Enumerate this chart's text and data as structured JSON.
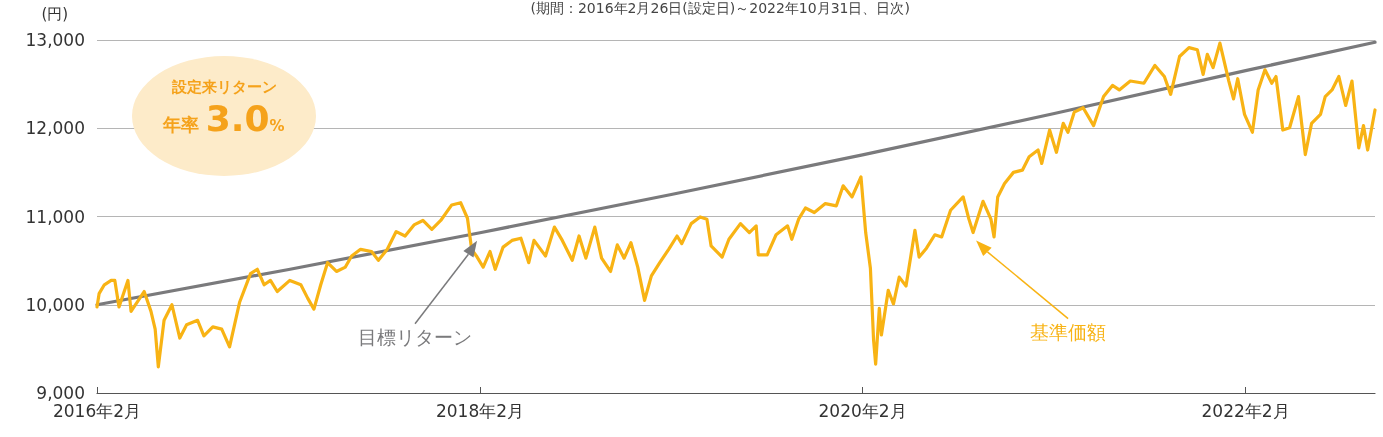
{
  "chart_data": {
    "type": "line",
    "subtitle": "(期間：2016年2月26日(設定日)～2022年10月31日、日次)",
    "ylabel": "(円)",
    "annotations": [
      "設定来リターン",
      "年率 3.0%"
    ],
    "xlim": [
      "2016-02-26",
      "2022-10-31"
    ],
    "xticks": [
      {
        "value": "2016-02-26",
        "label": "2016年2月"
      },
      {
        "value": "2018-02-26",
        "label": "2018年2月"
      },
      {
        "value": "2020-02-26",
        "label": "2020年2月"
      },
      {
        "value": "2022-02-26",
        "label": "2022年2月"
      }
    ],
    "ylim": [
      9000,
      13000
    ],
    "yticks": [
      {
        "value": 9000,
        "label": "9,000"
      },
      {
        "value": 10000,
        "label": "10,000"
      },
      {
        "value": 11000,
        "label": "11,000"
      },
      {
        "value": 12000,
        "label": "12,000"
      },
      {
        "value": 13000,
        "label": "13,000"
      }
    ],
    "grid": "y",
    "legend": false,
    "marker": "none",
    "line_style": "solid",
    "series": [
      {
        "name": "目標リターン",
        "color": "#7a7a7c",
        "x": [
          "2016-02-26",
          "2017-02-26",
          "2018-02-26",
          "2019-02-26",
          "2020-02-26",
          "2021-02-26",
          "2022-02-26",
          "2022-10-31"
        ],
        "values": [
          10000,
          10400,
          10816,
          11249,
          11699,
          12167,
          12653,
          12975
        ]
      },
      {
        "name": "基準価額",
        "color": "#f8b314",
        "x": [
          "2016-02-26",
          "2016-03-01",
          "2016-03-11",
          "2016-03-24",
          "2016-03-31",
          "2016-04-08",
          "2016-04-25",
          "2016-05-01",
          "2016-05-26",
          "2016-06-08",
          "2016-06-16",
          "2016-06-22",
          "2016-07-03",
          "2016-07-18",
          "2016-08-02",
          "2016-08-15",
          "2016-09-05",
          "2016-09-17",
          "2016-10-04",
          "2016-10-21",
          "2016-11-05",
          "2016-11-24",
          "2016-12-15",
          "2016-12-28",
          "2017-01-10",
          "2017-01-22",
          "2017-02-04",
          "2017-02-28",
          "2017-03-21",
          "2017-04-03",
          "2017-04-15",
          "2017-04-28",
          "2017-05-11",
          "2017-05-28",
          "2017-06-14",
          "2017-06-26",
          "2017-07-13",
          "2017-08-03",
          "2017-08-16",
          "2017-09-02",
          "2017-09-19",
          "2017-10-06",
          "2017-10-23",
          "2017-11-09",
          "2017-11-26",
          "2017-12-13",
          "2018-01-03",
          "2018-01-20",
          "2018-02-02",
          "2018-02-10",
          "2018-02-19",
          "2018-03-04",
          "2018-03-17",
          "2018-03-27",
          "2018-04-11",
          "2018-04-28",
          "2018-05-15",
          "2018-05-30",
          "2018-06-09",
          "2018-07-01",
          "2018-07-18",
          "2018-08-02",
          "2018-08-21",
          "2018-09-03",
          "2018-09-16",
          "2018-10-03",
          "2018-10-16",
          "2018-11-02",
          "2018-11-15",
          "2018-11-28",
          "2018-12-11",
          "2018-12-24",
          "2019-01-06",
          "2019-01-19",
          "2019-02-04",
          "2019-02-21",
          "2019-03-09",
          "2019-03-18",
          "2019-04-05",
          "2019-04-22",
          "2019-05-05",
          "2019-05-13",
          "2019-06-03",
          "2019-06-16",
          "2019-07-08",
          "2019-07-25",
          "2019-08-07",
          "2019-08-11",
          "2019-08-28",
          "2019-09-14",
          "2019-10-06",
          "2019-10-14",
          "2019-10-27",
          "2019-11-09",
          "2019-11-26",
          "2019-12-17",
          "2020-01-07",
          "2020-01-20",
          "2020-02-06",
          "2020-02-23",
          "2020-03-03",
          "2020-03-12",
          "2020-03-18",
          "2020-03-22",
          "2020-03-29",
          "2020-04-02",
          "2020-04-15",
          "2020-04-25",
          "2020-05-06",
          "2020-05-19",
          "2020-06-05",
          "2020-06-13",
          "2020-06-27",
          "2020-07-13",
          "2020-07-26",
          "2020-08-12",
          "2020-09-05",
          "2020-09-16",
          "2020-09-24",
          "2020-10-13",
          "2020-10-28",
          "2020-11-03",
          "2020-11-10",
          "2020-11-23",
          "2020-12-10",
          "2020-12-27",
          "2021-01-09",
          "2021-01-26",
          "2021-02-02",
          "2021-02-17",
          "2021-03-02",
          "2021-03-15",
          "2021-03-24",
          "2021-04-05",
          "2021-04-22",
          "2021-05-12",
          "2021-05-31",
          "2021-06-17",
          "2021-06-30",
          "2021-07-21",
          "2021-08-16",
          "2021-09-06",
          "2021-09-24",
          "2021-10-06",
          "2021-10-23",
          "2021-11-10",
          "2021-11-26",
          "2021-12-07",
          "2021-12-15",
          "2021-12-26",
          "2022-01-08",
          "2022-01-25",
          "2022-02-03",
          "2022-02-11",
          "2022-02-24",
          "2022-03-11",
          "2022-03-22",
          "2022-04-04",
          "2022-04-17",
          "2022-04-25",
          "2022-05-08",
          "2022-05-21",
          "2022-06-07",
          "2022-06-20",
          "2022-07-02",
          "2022-07-19",
          "2022-07-28",
          "2022-08-10",
          "2022-08-23",
          "2022-09-05",
          "2022-09-17",
          "2022-09-30",
          "2022-10-09",
          "2022-10-17",
          "2022-10-31"
        ],
        "values": [
          9975,
          10126,
          10226,
          10276,
          10276,
          9975,
          10276,
          9925,
          10150,
          9925,
          9724,
          9296,
          9824,
          10000,
          9623,
          9774,
          9824,
          9648,
          9749,
          9724,
          9523,
          10025,
          10352,
          10402,
          10226,
          10276,
          10150,
          10276,
          10226,
          10075,
          9950,
          10226,
          10477,
          10377,
          10427,
          10553,
          10628,
          10603,
          10503,
          10628,
          10829,
          10779,
          10905,
          10955,
          10854,
          10955,
          11131,
          11156,
          10980,
          10628,
          10553,
          10427,
          10603,
          10402,
          10653,
          10729,
          10754,
          10477,
          10729,
          10553,
          10880,
          10729,
          10503,
          10779,
          10528,
          10880,
          10528,
          10377,
          10678,
          10528,
          10704,
          10427,
          10050,
          10327,
          10477,
          10628,
          10779,
          10692,
          10919,
          10995,
          10970,
          10667,
          10540,
          10742,
          10919,
          10818,
          10894,
          10566,
          10566,
          10793,
          10894,
          10742,
          10970,
          11096,
          11045,
          11146,
          11121,
          11348,
          11222,
          11449,
          10818,
          10414,
          9606,
          9328,
          9960,
          9657,
          10162,
          10010,
          10313,
          10212,
          10843,
          10540,
          10641,
          10793,
          10768,
          11071,
          11222,
          10970,
          10818,
          11172,
          10970,
          10768,
          11222,
          11374,
          11500,
          11525,
          11677,
          11753,
          11601,
          11980,
          11727,
          12056,
          11955,
          12182,
          12232,
          12030,
          12359,
          12485,
          12434,
          12535,
          12510,
          12712,
          12586,
          12384,
          12813,
          12914,
          12889,
          12611,
          12838,
          12687,
          12965,
          12535,
          12333,
          12561,
          12157,
          11955,
          12434,
          12662,
          12510,
          12586,
          11980,
          12005,
          12359,
          11702,
          12056,
          12157,
          12359,
          12434,
          12586,
          12258,
          12535,
          11778,
          12030,
          11753,
          12207
        ]
      }
    ]
  }
}
